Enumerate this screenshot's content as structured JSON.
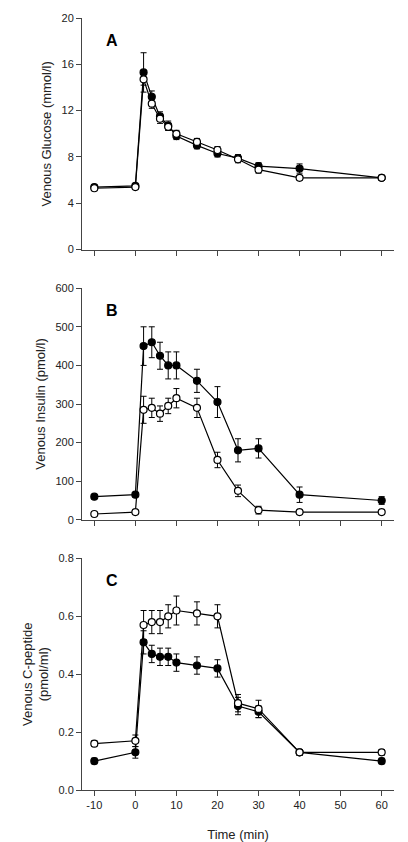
{
  "chart_data": [
    {
      "type": "line",
      "title": "A",
      "y_label": "Venous Glucose (mmol/l)",
      "x": [
        -10,
        0,
        2,
        4,
        6,
        8,
        10,
        15,
        20,
        25,
        30,
        40,
        60
      ],
      "xlim": [
        -13,
        63
      ],
      "xticks": [
        -10,
        0,
        10,
        20,
        30,
        40,
        50,
        60
      ],
      "ylim": [
        0,
        20
      ],
      "yticks": [
        0,
        4,
        8,
        12,
        16,
        20
      ],
      "grid": false,
      "tick_labels": "y",
      "series": [
        {
          "color": "#000000",
          "marker": "filled",
          "line_style": "solid",
          "values": [
            5.4,
            5.5,
            15.3,
            13.2,
            11.5,
            10.7,
            9.8,
            9.0,
            8.3,
            7.9,
            7.2,
            7.0,
            6.2
          ],
          "yerr": [
            0.2,
            0.2,
            1.7,
            0.5,
            0.4,
            0.4,
            0.3,
            0.3,
            0.3,
            0.3,
            0.3,
            0.4,
            0.2
          ]
        },
        {
          "color": "#000000",
          "marker": "open",
          "line_style": "solid",
          "values": [
            5.3,
            5.4,
            14.7,
            12.6,
            11.3,
            10.6,
            10.0,
            9.3,
            8.6,
            7.8,
            6.9,
            6.2,
            6.2
          ],
          "yerr": [
            0.2,
            0.2,
            0.5,
            0.4,
            0.4,
            0.3,
            0.3,
            0.3,
            0.3,
            0.3,
            0.3,
            0.2,
            0.2
          ]
        }
      ]
    },
    {
      "type": "line",
      "title": "B",
      "y_label": "Venous Insulin (pmol/l)",
      "x": [
        -10,
        0,
        2,
        4,
        6,
        8,
        10,
        15,
        20,
        25,
        30,
        40,
        60
      ],
      "xlim": [
        -13,
        63
      ],
      "xticks": [
        -10,
        0,
        10,
        20,
        30,
        40,
        50,
        60
      ],
      "ylim": [
        0,
        600
      ],
      "yticks": [
        0,
        100,
        200,
        300,
        400,
        500,
        600
      ],
      "grid": false,
      "tick_labels": "y",
      "series": [
        {
          "color": "#000000",
          "marker": "filled",
          "line_style": "solid",
          "values": [
            60,
            65,
            450,
            460,
            425,
            400,
            400,
            360,
            305,
            180,
            185,
            65,
            50
          ],
          "yerr": [
            5,
            5,
            50,
            40,
            35,
            35,
            35,
            30,
            40,
            30,
            25,
            20,
            10
          ]
        },
        {
          "color": "#000000",
          "marker": "open",
          "line_style": "solid",
          "values": [
            15,
            20,
            285,
            290,
            275,
            295,
            315,
            290,
            155,
            75,
            25,
            20,
            20
          ],
          "yerr": [
            5,
            5,
            35,
            25,
            20,
            20,
            25,
            25,
            20,
            15,
            10,
            5,
            5
          ]
        }
      ]
    },
    {
      "type": "line",
      "title": "C",
      "y_label": "Venous C-peptide\n(pmol/ml)",
      "x_label": "Time (min)",
      "x": [
        -10,
        0,
        2,
        4,
        6,
        8,
        10,
        15,
        20,
        25,
        30,
        40,
        60
      ],
      "xlim": [
        -13,
        63
      ],
      "xticks": [
        -10,
        0,
        10,
        20,
        30,
        40,
        50,
        60
      ],
      "ylim": [
        0,
        0.8
      ],
      "yticks": [
        {
          "value": 0,
          "label": "0.0"
        },
        0.2,
        0.4,
        0.6,
        0.8
      ],
      "grid": false,
      "series": [
        {
          "color": "#000000",
          "marker": "filled",
          "line_style": "solid",
          "values": [
            0.1,
            0.13,
            0.51,
            0.47,
            0.46,
            0.46,
            0.44,
            0.43,
            0.42,
            0.29,
            0.27,
            0.13,
            0.1
          ],
          "yerr": [
            0.01,
            0.02,
            0.04,
            0.03,
            0.03,
            0.03,
            0.03,
            0.03,
            0.03,
            0.03,
            0.02,
            0.01,
            0.01
          ]
        },
        {
          "color": "#000000",
          "marker": "open",
          "line_style": "solid",
          "values": [
            0.16,
            0.17,
            0.57,
            0.58,
            0.58,
            0.6,
            0.62,
            0.61,
            0.6,
            0.3,
            0.28,
            0.13,
            0.13
          ],
          "yerr": [
            0.01,
            0.02,
            0.05,
            0.04,
            0.04,
            0.04,
            0.05,
            0.04,
            0.04,
            0.03,
            0.03,
            0.01,
            0.01
          ]
        }
      ]
    }
  ]
}
